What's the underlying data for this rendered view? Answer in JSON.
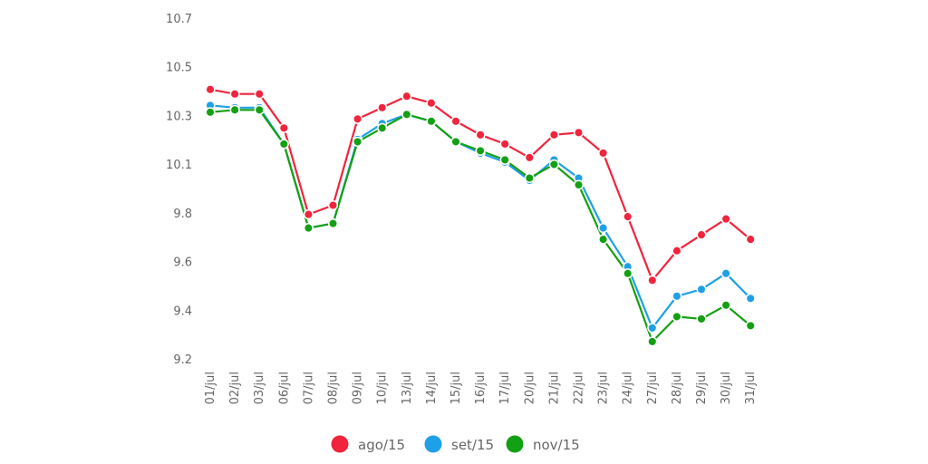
{
  "chart_data": {
    "type": "line",
    "title": "",
    "xlabel": "",
    "ylabel": "",
    "ylim": [
      9.2,
      10.7
    ],
    "y_ticks": [
      "9.2",
      "9.4",
      "9.6",
      "9.8",
      "10.1",
      "10.3",
      "10.5",
      "10.7"
    ],
    "grid": false,
    "legend_position": "bottom",
    "categories": [
      "01/jul",
      "02/jul",
      "03/jul",
      "06/jul",
      "07/jul",
      "08/jul",
      "09/jul",
      "10/jul",
      "13/jul",
      "14/jul",
      "15/jul",
      "16/jul",
      "17/jul",
      "20/jul",
      "21/jul",
      "22/jul",
      "23/jul",
      "24/jul",
      "27/jul",
      "28/jul",
      "29/jul",
      "30/jul",
      "31/jul"
    ],
    "series": [
      {
        "name": "ago/15",
        "color": "#f0243c",
        "values": [
          10.39,
          10.37,
          10.37,
          10.22,
          9.84,
          9.88,
          10.26,
          10.31,
          10.36,
          10.33,
          10.25,
          10.19,
          10.15,
          10.09,
          10.19,
          10.2,
          10.11,
          9.83,
          9.55,
          9.68,
          9.75,
          9.82,
          9.73
        ]
      },
      {
        "name": "set/15",
        "color": "#1ea0e6",
        "values": [
          10.32,
          10.31,
          10.31,
          10.15,
          9.78,
          9.8,
          10.17,
          10.24,
          10.28,
          10.25,
          10.16,
          10.11,
          10.07,
          9.99,
          10.08,
          10.0,
          9.78,
          9.61,
          9.34,
          9.48,
          9.51,
          9.58,
          9.47
        ]
      },
      {
        "name": "nov/15",
        "color": "#14a014",
        "values": [
          10.29,
          10.3,
          10.3,
          10.15,
          9.78,
          9.8,
          10.16,
          10.22,
          10.28,
          10.25,
          10.16,
          10.12,
          10.08,
          10.0,
          10.06,
          9.97,
          9.73,
          9.58,
          9.28,
          9.39,
          9.38,
          9.44,
          9.35
        ]
      }
    ]
  }
}
